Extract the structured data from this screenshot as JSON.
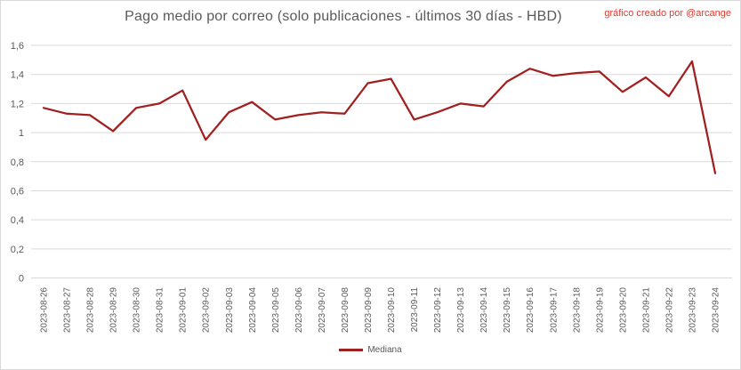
{
  "header": {
    "title": "Pago medio por correo (solo publicaciones - últimos 30 días - HBD)",
    "credit": "gráfico creado por @arcange"
  },
  "chart_data": {
    "type": "line",
    "title": "Pago medio por correo (solo publicaciones - últimos 30 días - HBD)",
    "categories": [
      "2023-08-26",
      "2023-08-27",
      "2023-08-28",
      "2023-08-29",
      "2023-08-30",
      "2023-08-31",
      "2023-09-01",
      "2023-09-02",
      "2023-09-03",
      "2023-09-04",
      "2023-09-05",
      "2023-09-06",
      "2023-09-07",
      "2023-09-08",
      "2023-09-09",
      "2023-09-10",
      "2023-09-11",
      "2023-09-12",
      "2023-09-13",
      "2023-09-14",
      "2023-09-15",
      "2023-09-16",
      "2023-09-17",
      "2023-09-18",
      "2023-09-19",
      "2023-09-20",
      "2023-09-21",
      "2023-09-22",
      "2023-09-23",
      "2023-09-24"
    ],
    "series": [
      {
        "name": "Mediana",
        "color": "#a02020",
        "values": [
          1.17,
          1.13,
          1.12,
          1.01,
          1.17,
          1.2,
          1.29,
          0.95,
          1.14,
          1.21,
          1.09,
          1.12,
          1.14,
          1.13,
          1.34,
          1.37,
          1.09,
          1.14,
          1.2,
          1.18,
          1.35,
          1.44,
          1.39,
          1.41,
          1.42,
          1.28,
          1.38,
          1.25,
          1.49,
          0.72
        ]
      }
    ],
    "y_ticks": [
      {
        "label": "0",
        "value": 0
      },
      {
        "label": "0,2",
        "value": 0.2
      },
      {
        "label": "0,4",
        "value": 0.4
      },
      {
        "label": "0,6",
        "value": 0.6
      },
      {
        "label": "0,8",
        "value": 0.8
      },
      {
        "label": "1",
        "value": 1.0
      },
      {
        "label": "1,2",
        "value": 1.2
      },
      {
        "label": "1,4",
        "value": 1.4
      },
      {
        "label": "1,6",
        "value": 1.6
      }
    ],
    "ylim": [
      0,
      1.6
    ],
    "xlabel": "",
    "ylabel": "",
    "grid": "horizontal",
    "legend_position": "bottom",
    "decimal_separator": ","
  },
  "legend": {
    "label": "Mediana"
  },
  "colors": {
    "background": "#ffffff",
    "border": "#d9d9d9",
    "grid": "#d9d9d9",
    "title_text": "#595959",
    "axis_text": "#595959",
    "credit_text": "#e03a2e",
    "line": "#a02020"
  }
}
